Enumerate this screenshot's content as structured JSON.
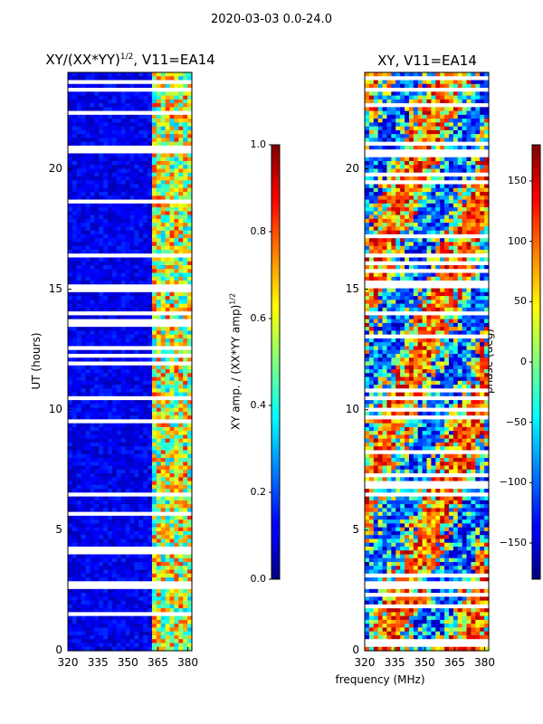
{
  "suptitle": "2020-03-03 0.0-24.0",
  "chart_data": [
    {
      "type": "heatmap",
      "title": "XY/(XX*YY)^{1/2}, V11=EA14",
      "title_main": "XY/(XX*YY)",
      "title_sup": "1/2",
      "title_tail": ", V11=EA14",
      "xlabel": "",
      "ylabel": "UT (hours)",
      "xlim": [
        320,
        382
      ],
      "ylim": [
        0,
        24
      ],
      "xticks": [
        320,
        335,
        350,
        365,
        380
      ],
      "xtick_labels": [
        "320",
        "335",
        "350",
        "365",
        "380"
      ],
      "yticks": [
        0,
        5,
        10,
        15,
        20
      ],
      "ytick_labels": [
        "0",
        "5",
        "10",
        "15",
        "20"
      ],
      "colorbar": {
        "label": "XY amp. / (XX*YY amp)^{1/2}",
        "label_main": "XY amp. / (XX*YY amp)",
        "label_sup": "1/2",
        "range": [
          0.0,
          1.0
        ],
        "ticks": [
          0.0,
          0.2,
          0.4,
          0.6,
          0.8,
          1.0
        ],
        "tick_labels": [
          "0.0",
          "0.2",
          "0.4",
          "0.6",
          "0.8",
          "1.0"
        ],
        "colormap": "jet"
      }
    },
    {
      "type": "heatmap",
      "title": "XY, V11=EA14",
      "xlabel": "frequency (MHz)",
      "ylabel": "",
      "xlim": [
        320,
        382
      ],
      "ylim": [
        0,
        24
      ],
      "xticks": [
        320,
        335,
        350,
        365,
        380
      ],
      "xtick_labels": [
        "320",
        "335",
        "350",
        "365",
        "380"
      ],
      "yticks": [
        0,
        5,
        10,
        15,
        20
      ],
      "ytick_labels": [
        "0",
        "5",
        "10",
        "15",
        "20"
      ],
      "colorbar": {
        "label": "phase (deg)",
        "range": [
          -180,
          180
        ],
        "ticks": [
          -150,
          -100,
          -50,
          0,
          50,
          100,
          150
        ],
        "tick_labels": [
          "−150",
          "−100",
          "−50",
          "0",
          "50",
          "100",
          "150"
        ],
        "colormap": "jet"
      }
    }
  ]
}
